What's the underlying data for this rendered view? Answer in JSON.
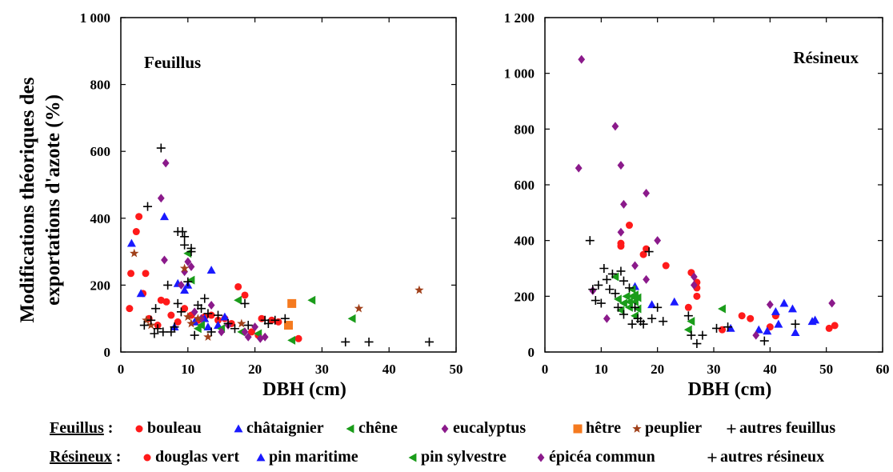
{
  "y_axis_label_line1": "Modifications théoriques des",
  "y_axis_label_line2": "exportations d'azote (%)",
  "colors": {
    "bouleau": "#ff1a1a",
    "chataignier": "#1a1aff",
    "chene": "#1a9c1a",
    "eucalyptus": "#8b1a8b",
    "hetre": "#f57a1f",
    "peuplier": "#a0401a",
    "autres": "#000000"
  },
  "legend": {
    "feuillus_label": "Feuillus",
    "feuillus_items": [
      {
        "label": "bouleau",
        "marker": "circle",
        "color": "#ff1a1a"
      },
      {
        "label": "châtaignier",
        "marker": "triangle-up",
        "color": "#1a1aff"
      },
      {
        "label": "chêne",
        "marker": "triangle-left",
        "color": "#1a9c1a"
      },
      {
        "label": "eucalyptus",
        "marker": "diamond",
        "color": "#8b1a8b"
      },
      {
        "label": "hêtre",
        "marker": "square",
        "color": "#f57a1f"
      },
      {
        "label": "peuplier",
        "marker": "star",
        "color": "#a0401a"
      },
      {
        "label": "autres feuillus",
        "marker": "plus",
        "color": "#000000"
      }
    ],
    "resineux_label": "Résineux",
    "resineux_items": [
      {
        "label": "douglas vert",
        "marker": "circle",
        "color": "#ff1a1a"
      },
      {
        "label": "pin maritime",
        "marker": "triangle-up",
        "color": "#1a1aff"
      },
      {
        "label": "pin sylvestre",
        "marker": "triangle-left",
        "color": "#1a9c1a"
      },
      {
        "label": "épicéa commun",
        "marker": "diamond",
        "color": "#8b1a8b"
      },
      {
        "label": "autres résineux",
        "marker": "plus",
        "color": "#000000"
      }
    ]
  },
  "chart_data": [
    {
      "type": "scatter",
      "title": "Feuillus",
      "xlabel": "DBH (cm)",
      "ylabel": "Modifications théoriques des exportations d'azote (%)",
      "xlim": [
        0,
        50
      ],
      "ylim": [
        0,
        1000
      ],
      "xticks": [
        0,
        10,
        20,
        30,
        40,
        50
      ],
      "yticks": [
        0,
        200,
        400,
        600,
        800,
        1000
      ],
      "ytick_labels": [
        "0",
        "200",
        "400",
        "600",
        "800",
        "1 000"
      ],
      "grid": false,
      "series": [
        {
          "name": "bouleau",
          "marker": "circle",
          "color": "#ff1a1a",
          "points": [
            [
              1.3,
              130
            ],
            [
              1.5,
              235
            ],
            [
              2.3,
              360
            ],
            [
              2.7,
              405
            ],
            [
              3.3,
              175
            ],
            [
              3.7,
              235
            ],
            [
              4.2,
              100
            ],
            [
              5.5,
              80
            ],
            [
              6,
              155
            ],
            [
              6.8,
              150
            ],
            [
              7.5,
              110
            ],
            [
              8.5,
              90
            ],
            [
              9.5,
              130
            ],
            [
              10.5,
              110
            ],
            [
              11.5,
              95
            ],
            [
              12.5,
              105
            ],
            [
              13.5,
              110
            ],
            [
              14.5,
              95
            ],
            [
              15.5,
              100
            ],
            [
              16.5,
              85
            ],
            [
              17.5,
              195
            ],
            [
              18.5,
              170
            ],
            [
              19.5,
              60
            ],
            [
              20.5,
              50
            ],
            [
              21,
              100
            ],
            [
              22.5,
              95
            ],
            [
              23.5,
              90
            ],
            [
              26.5,
              40
            ]
          ]
        },
        {
          "name": "châtaignier",
          "marker": "triangle-up",
          "color": "#1a1aff",
          "points": [
            [
              1.6,
              325
            ],
            [
              3,
              175
            ],
            [
              6.5,
              405
            ],
            [
              8.5,
              205
            ],
            [
              9.5,
              185
            ],
            [
              10,
              200
            ],
            [
              11,
              90
            ],
            [
              12.5,
              100
            ],
            [
              13.5,
              245
            ],
            [
              14.5,
              80
            ],
            [
              15.5,
              105
            ],
            [
              8,
              75
            ],
            [
              13,
              75
            ]
          ]
        },
        {
          "name": "chêne",
          "marker": "triangle-left",
          "color": "#1a9c1a",
          "points": [
            [
              10,
              295
            ],
            [
              10.5,
              215
            ],
            [
              11.5,
              70
            ],
            [
              12,
              80
            ],
            [
              15,
              70
            ],
            [
              17.5,
              155
            ],
            [
              18,
              60
            ],
            [
              20.5,
              55
            ],
            [
              25.5,
              35
            ],
            [
              28.5,
              155
            ],
            [
              34.5,
              100
            ]
          ]
        },
        {
          "name": "eucalyptus",
          "marker": "diamond",
          "color": "#8b1a8b",
          "points": [
            [
              6,
              460
            ],
            [
              6.5,
              275
            ],
            [
              6.7,
              565
            ],
            [
              9,
              200
            ],
            [
              9.5,
              240
            ],
            [
              10,
              270
            ],
            [
              10.5,
              255
            ],
            [
              11,
              120
            ],
            [
              12,
              100
            ],
            [
              13.5,
              140
            ],
            [
              16,
              80
            ],
            [
              18.5,
              60
            ],
            [
              19,
              45
            ],
            [
              20,
              75
            ],
            [
              20.8,
              40
            ],
            [
              21.5,
              45
            ],
            [
              15,
              60
            ]
          ]
        },
        {
          "name": "hêtre",
          "marker": "square",
          "color": "#f57a1f",
          "points": [
            [
              25.5,
              145
            ],
            [
              25,
              80
            ]
          ]
        },
        {
          "name": "peuplier",
          "marker": "star",
          "color": "#a0401a",
          "points": [
            [
              2,
              295
            ],
            [
              3.8,
              95
            ],
            [
              4.5,
              80
            ],
            [
              9.5,
              250
            ],
            [
              10,
              105
            ],
            [
              10.5,
              85
            ],
            [
              11.5,
              100
            ],
            [
              13,
              45
            ],
            [
              18,
              85
            ],
            [
              35.5,
              130
            ],
            [
              44.5,
              185
            ]
          ]
        },
        {
          "name": "autres feuillus",
          "marker": "plus",
          "color": "#000000",
          "points": [
            [
              3.5,
              80
            ],
            [
              4,
              435
            ],
            [
              4.5,
              95
            ],
            [
              5,
              55
            ],
            [
              5.2,
              130
            ],
            [
              5.5,
              70
            ],
            [
              6,
              610
            ],
            [
              6.3,
              60
            ],
            [
              7,
              200
            ],
            [
              7.5,
              60
            ],
            [
              8,
              75
            ],
            [
              8.5,
              145
            ],
            [
              8.5,
              360
            ],
            [
              9,
              120
            ],
            [
              9.2,
              360
            ],
            [
              9.5,
              320
            ],
            [
              9.5,
              345
            ],
            [
              10,
              210
            ],
            [
              10.5,
              300
            ],
            [
              10.5,
              310
            ],
            [
              11,
              50
            ],
            [
              11.5,
              140
            ],
            [
              12,
              130
            ],
            [
              12.5,
              160
            ],
            [
              13,
              115
            ],
            [
              13.5,
              60
            ],
            [
              14.5,
              110
            ],
            [
              16,
              85
            ],
            [
              17,
              70
            ],
            [
              18.5,
              145
            ],
            [
              19,
              80
            ],
            [
              21.5,
              95
            ],
            [
              22,
              85
            ],
            [
              23,
              95
            ],
            [
              24.5,
              100
            ],
            [
              33.5,
              30
            ],
            [
              37,
              30
            ],
            [
              46,
              30
            ]
          ]
        }
      ]
    },
    {
      "type": "scatter",
      "title": "Résineux",
      "xlabel": "DBH (cm)",
      "ylabel": "",
      "xlim": [
        0,
        60
      ],
      "ylim": [
        0,
        1200
      ],
      "xticks": [
        0,
        10,
        20,
        30,
        40,
        50,
        60
      ],
      "yticks": [
        0,
        200,
        400,
        600,
        800,
        1000,
        1200
      ],
      "ytick_labels": [
        "0",
        "200",
        "400",
        "600",
        "800",
        "1 000",
        "1 200"
      ],
      "grid": false,
      "series": [
        {
          "name": "douglas vert",
          "marker": "circle",
          "color": "#ff1a1a",
          "points": [
            [
              13.5,
              390
            ],
            [
              13.5,
              380
            ],
            [
              15,
              455
            ],
            [
              17.5,
              350
            ],
            [
              18,
              370
            ],
            [
              21.5,
              310
            ],
            [
              25.5,
              160
            ],
            [
              26,
              285
            ],
            [
              27,
              250
            ],
            [
              27,
              230
            ],
            [
              27,
              200
            ],
            [
              31.5,
              80
            ],
            [
              35,
              130
            ],
            [
              36.5,
              120
            ],
            [
              40,
              90
            ],
            [
              41,
              130
            ],
            [
              50.5,
              85
            ],
            [
              51.5,
              95
            ]
          ]
        },
        {
          "name": "pin maritime",
          "marker": "triangle-up",
          "color": "#1a1aff",
          "points": [
            [
              16,
              235
            ],
            [
              19,
              170
            ],
            [
              23,
              180
            ],
            [
              33,
              85
            ],
            [
              38,
              80
            ],
            [
              39.5,
              75
            ],
            [
              41,
              145
            ],
            [
              41.5,
              100
            ],
            [
              42.5,
              175
            ],
            [
              44.5,
              70
            ],
            [
              44,
              155
            ],
            [
              47.5,
              110
            ],
            [
              48,
              115
            ]
          ]
        },
        {
          "name": "pin sylvestre",
          "marker": "triangle-left",
          "color": "#1a9c1a",
          "points": [
            [
              12.5,
              270
            ],
            [
              13,
              190
            ],
            [
              13.5,
              150
            ],
            [
              14,
              175
            ],
            [
              14.5,
              200
            ],
            [
              15,
              180
            ],
            [
              15,
              160
            ],
            [
              15.5,
              200
            ],
            [
              15.5,
              225
            ],
            [
              16,
              180
            ],
            [
              16,
              205
            ],
            [
              16.5,
              195
            ],
            [
              16.5,
              155
            ],
            [
              16,
              130
            ],
            [
              25.5,
              80
            ],
            [
              26,
              110
            ],
            [
              31.5,
              155
            ]
          ]
        },
        {
          "name": "épicéa commun",
          "marker": "diamond",
          "color": "#8b1a8b",
          "points": [
            [
              6.5,
              1050
            ],
            [
              6,
              660
            ],
            [
              8.5,
              220
            ],
            [
              11,
              120
            ],
            [
              12.5,
              810
            ],
            [
              13.5,
              670
            ],
            [
              13.5,
              430
            ],
            [
              14,
              530
            ],
            [
              16,
              310
            ],
            [
              18,
              570
            ],
            [
              18,
              260
            ],
            [
              20,
              400
            ],
            [
              26.5,
              270
            ],
            [
              26.5,
              240
            ],
            [
              37.5,
              60
            ],
            [
              40,
              170
            ],
            [
              51,
              175
            ]
          ]
        },
        {
          "name": "autres résineux",
          "marker": "plus",
          "color": "#000000",
          "points": [
            [
              8,
              400
            ],
            [
              8.5,
              225
            ],
            [
              9,
              185
            ],
            [
              9.5,
              240
            ],
            [
              10,
              175
            ],
            [
              10.5,
              300
            ],
            [
              11,
              260
            ],
            [
              11.5,
              225
            ],
            [
              12,
              280
            ],
            [
              12.5,
              210
            ],
            [
              13,
              160
            ],
            [
              13.5,
              290
            ],
            [
              14,
              135
            ],
            [
              14,
              255
            ],
            [
              15,
              230
            ],
            [
              15.5,
              100
            ],
            [
              16,
              160
            ],
            [
              16.5,
              120
            ],
            [
              17,
              110
            ],
            [
              17.5,
              100
            ],
            [
              18.5,
              360
            ],
            [
              19,
              120
            ],
            [
              20,
              160
            ],
            [
              21,
              110
            ],
            [
              25.5,
              130
            ],
            [
              26,
              60
            ],
            [
              27,
              30
            ],
            [
              28,
              60
            ],
            [
              30.5,
              85
            ],
            [
              32.5,
              90
            ],
            [
              39,
              40
            ],
            [
              44.5,
              100
            ]
          ]
        }
      ]
    }
  ]
}
